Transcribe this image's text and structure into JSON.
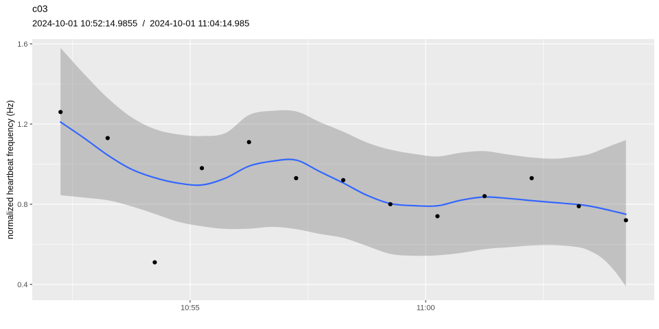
{
  "chart_data": {
    "type": "scatter",
    "title": "c03",
    "subtitle": "2024-10-01 10:52:14.9855  /  2024-10-01 11:04:14.985",
    "xlabel": "",
    "ylabel": "normalized heartbeat frequency (Hz)",
    "x_unit": "seconds since 10:52:15",
    "xlim": [
      -36,
      756
    ],
    "ylim": [
      0.321,
      1.624
    ],
    "grid": "on",
    "legend": "none",
    "x_major_ticks": [
      {
        "t": 165,
        "label": "10:55"
      },
      {
        "t": 465,
        "label": "11:00"
      }
    ],
    "x_minor_ticks": [
      15,
      315,
      615
    ],
    "y_major_ticks": [
      {
        "v": 0.4,
        "label": "0.4"
      },
      {
        "v": 0.8,
        "label": "0.8"
      },
      {
        "v": 1.2,
        "label": "1.2"
      },
      {
        "v": 1.6,
        "label": "1.6"
      }
    ],
    "y_minor_ticks": [
      0.6,
      1.0,
      1.4
    ],
    "points": {
      "times": [
        "10:52:15",
        "10:53:15",
        "10:54:15",
        "10:55:15",
        "10:56:15",
        "10:57:15",
        "10:58:15",
        "10:59:15",
        "11:00:15",
        "11:01:15",
        "11:02:15",
        "11:03:15",
        "11:04:15"
      ],
      "t": [
        0,
        60,
        120,
        180,
        240,
        300,
        360,
        420,
        480,
        540,
        600,
        660,
        720
      ],
      "values": [
        1.26,
        1.13,
        0.51,
        0.98,
        1.11,
        0.93,
        0.92,
        0.8,
        0.74,
        0.84,
        0.93,
        0.79,
        0.72
      ]
    },
    "smooth": {
      "t": [
        0,
        30,
        60,
        90,
        120,
        150,
        180,
        210,
        240,
        270,
        300,
        330,
        360,
        390,
        420,
        450,
        480,
        510,
        540,
        570,
        600,
        630,
        660,
        675,
        690,
        705,
        720
      ],
      "fit": [
        1.21,
        1.13,
        1.045,
        0.975,
        0.932,
        0.905,
        0.896,
        0.93,
        0.99,
        1.015,
        1.02,
        0.963,
        0.906,
        0.845,
        0.803,
        0.793,
        0.792,
        0.82,
        0.836,
        0.829,
        0.818,
        0.808,
        0.798,
        0.79,
        0.778,
        0.764,
        0.75
      ],
      "upper": [
        1.58,
        1.45,
        1.33,
        1.235,
        1.175,
        1.148,
        1.14,
        1.155,
        1.245,
        1.266,
        1.263,
        1.21,
        1.162,
        1.108,
        1.072,
        1.051,
        1.038,
        1.057,
        1.065,
        1.048,
        1.033,
        1.027,
        1.04,
        1.052,
        1.075,
        1.098,
        1.12
      ],
      "lower": [
        0.845,
        0.833,
        0.82,
        0.79,
        0.752,
        0.712,
        0.69,
        0.677,
        0.678,
        0.687,
        0.676,
        0.652,
        0.632,
        0.592,
        0.552,
        0.543,
        0.545,
        0.557,
        0.576,
        0.585,
        0.594,
        0.596,
        0.585,
        0.565,
        0.53,
        0.47,
        0.39
      ]
    },
    "colors": {
      "panel_bg": "#EBEBEB",
      "grid": "#FFFFFF",
      "smooth_line": "#3366FF",
      "band": "rgba(110,110,110,0.34)",
      "point": "#000000",
      "tick_mark": "#333333",
      "tick_label": "#4D4D4D",
      "title": "#000000"
    }
  }
}
